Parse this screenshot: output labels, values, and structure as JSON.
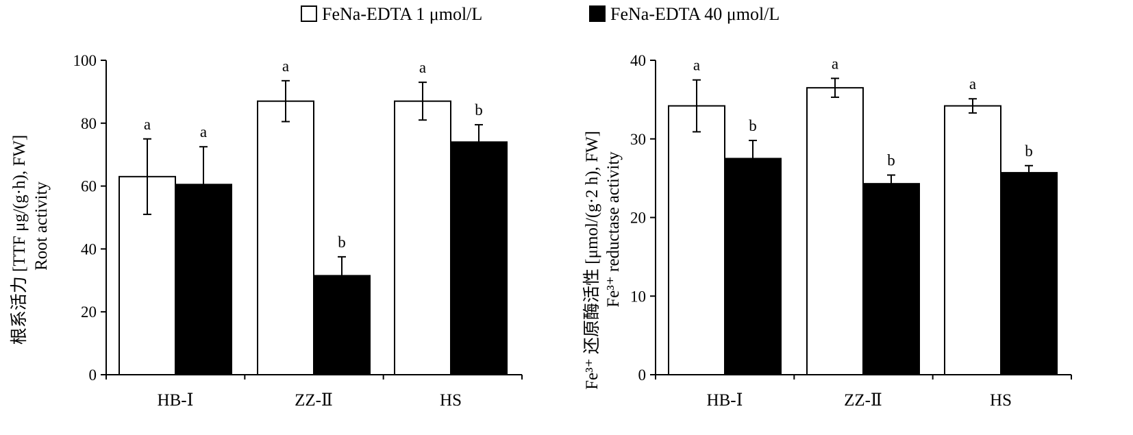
{
  "legend": [
    {
      "label": "FeNa-EDTA 1 μmol/L",
      "fill": "#ffffff"
    },
    {
      "label": "FeNa-EDTA 40 μmol/L",
      "fill": "#000000"
    }
  ],
  "colors": {
    "series_low": "#ffffff",
    "series_high": "#000000",
    "stroke": "#000000"
  },
  "chart_data": [
    {
      "type": "bar",
      "categories": [
        "HB-Ⅰ",
        "ZZ-Ⅱ",
        "HS"
      ],
      "ylabel_cn": "根系活力 [TTF μg/(g·h), FW]",
      "ylabel_en": "Root activity",
      "ylim": [
        0,
        100
      ],
      "yticks": [
        "0",
        "20",
        "40",
        "60",
        "80",
        "100"
      ],
      "series": [
        {
          "name": "FeNa-EDTA 1 μmol/L",
          "values": [
            63,
            87,
            87
          ],
          "errors": [
            12,
            6.5,
            6
          ],
          "sig": [
            "a",
            "a",
            "a"
          ]
        },
        {
          "name": "FeNa-EDTA 40 μmol/L",
          "values": [
            60.5,
            31.5,
            74
          ],
          "errors": [
            12,
            6,
            5.5
          ],
          "sig": [
            "a",
            "b",
            "b"
          ]
        }
      ]
    },
    {
      "type": "bar",
      "categories": [
        "HB-Ⅰ",
        "ZZ-Ⅱ",
        "HS"
      ],
      "ylabel_cn": "Fe³⁺ 还原酶活性 [μmol/(g·2 h), FW]",
      "ylabel_en": "Fe³⁺ reductase activity",
      "ylim": [
        0,
        40
      ],
      "yticks": [
        "0",
        "10",
        "20",
        "30",
        "40"
      ],
      "series": [
        {
          "name": "FeNa-EDTA 1 μmol/L",
          "values": [
            34.2,
            36.5,
            34.2
          ],
          "errors": [
            3.3,
            1.2,
            0.9
          ],
          "sig": [
            "a",
            "a",
            "a"
          ]
        },
        {
          "name": "FeNa-EDTA 40 μmol/L",
          "values": [
            27.5,
            24.3,
            25.7
          ],
          "errors": [
            2.3,
            1.1,
            0.9
          ],
          "sig": [
            "b",
            "b",
            "b"
          ]
        }
      ]
    }
  ]
}
